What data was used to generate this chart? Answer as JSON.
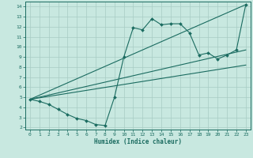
{
  "xlabel": "Humidex (Indice chaleur)",
  "ylabel": "",
  "bg_color": "#c8e8e0",
  "grid_color": "#a8ccc4",
  "line_color": "#1a6b60",
  "xlim": [
    -0.5,
    23.5
  ],
  "ylim": [
    1.8,
    14.5
  ],
  "xticks": [
    0,
    1,
    2,
    3,
    4,
    5,
    6,
    7,
    8,
    9,
    10,
    11,
    12,
    13,
    14,
    15,
    16,
    17,
    18,
    19,
    20,
    21,
    22,
    23
  ],
  "yticks": [
    2,
    3,
    4,
    5,
    6,
    7,
    8,
    9,
    10,
    11,
    12,
    13,
    14
  ],
  "series1_x": [
    0,
    1,
    2,
    3,
    4,
    5,
    6,
    7,
    8,
    9,
    10,
    11,
    12,
    13,
    14,
    15,
    16,
    17,
    18,
    19,
    20,
    21,
    22,
    23
  ],
  "series1_y": [
    4.8,
    4.6,
    4.3,
    3.8,
    3.3,
    2.9,
    2.7,
    2.3,
    2.2,
    5.0,
    9.0,
    11.9,
    11.7,
    12.8,
    12.2,
    12.3,
    12.3,
    11.4,
    9.2,
    9.4,
    8.8,
    9.2,
    9.7,
    14.2
  ],
  "series2_x": [
    0,
    23
  ],
  "series2_y": [
    4.8,
    14.2
  ],
  "series3_x": [
    0,
    23
  ],
  "series3_y": [
    4.8,
    9.7
  ],
  "series4_x": [
    0,
    23
  ],
  "series4_y": [
    4.8,
    8.2
  ]
}
